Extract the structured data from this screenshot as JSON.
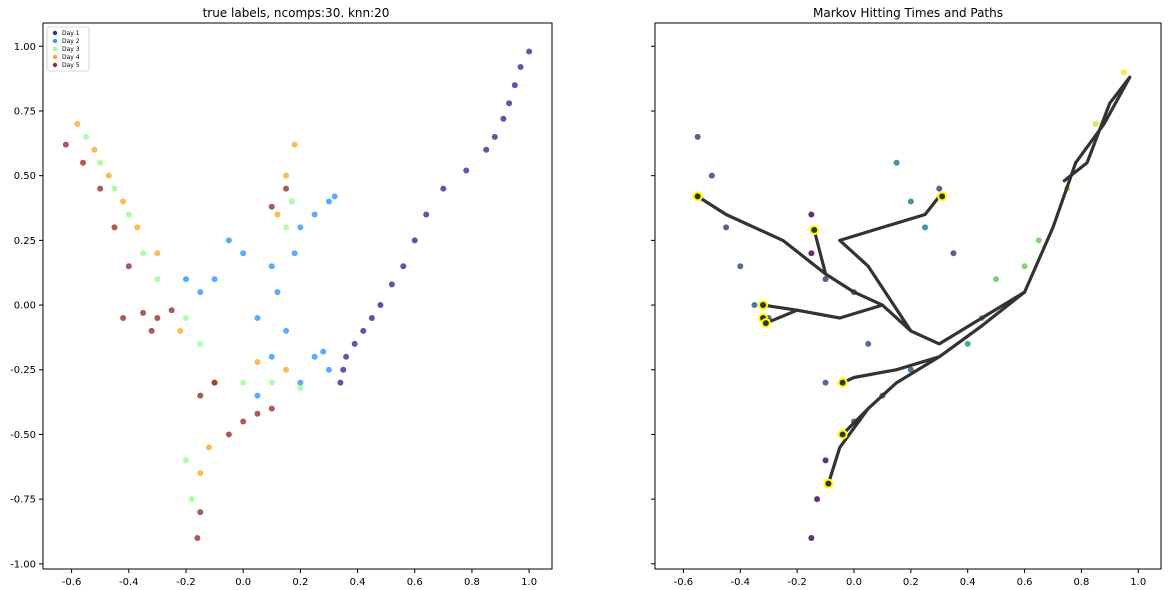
{
  "chart_data": [
    {
      "type": "scatter",
      "title": "true labels, ncomps:30. knn:20",
      "xlabel": "",
      "ylabel": "",
      "xlim": [
        -0.7,
        1.08
      ],
      "ylim": [
        -1.02,
        1.09
      ],
      "xticks": [
        "-0.6",
        "-0.4",
        "-0.2",
        "0.0",
        "0.2",
        "0.4",
        "0.6",
        "0.8",
        "1.0"
      ],
      "yticks": [
        "-1.00",
        "-0.75",
        "-0.50",
        "-0.25",
        "0.00",
        "0.25",
        "0.50",
        "0.75",
        "1.00"
      ],
      "legend": {
        "placement": "top-left"
      },
      "series": [
        {
          "name": "Day 1",
          "color": "#00007f",
          "points": [
            [
              1.0,
              0.98
            ],
            [
              0.97,
              0.92
            ],
            [
              0.95,
              0.85
            ],
            [
              0.93,
              0.78
            ],
            [
              0.91,
              0.72
            ],
            [
              0.88,
              0.65
            ],
            [
              0.85,
              0.6
            ],
            [
              0.78,
              0.52
            ],
            [
              0.7,
              0.45
            ],
            [
              0.64,
              0.35
            ],
            [
              0.6,
              0.25
            ],
            [
              0.56,
              0.15
            ],
            [
              0.52,
              0.08
            ],
            [
              0.48,
              0.0
            ],
            [
              0.45,
              -0.05
            ],
            [
              0.42,
              -0.1
            ],
            [
              0.39,
              -0.15
            ],
            [
              0.36,
              -0.2
            ],
            [
              0.35,
              -0.25
            ],
            [
              0.34,
              -0.3
            ]
          ]
        },
        {
          "name": "Day 2",
          "color": "#0080ff",
          "points": [
            [
              0.3,
              0.4
            ],
            [
              0.25,
              0.35
            ],
            [
              0.2,
              0.3
            ],
            [
              0.18,
              0.2
            ],
            [
              0.1,
              0.15
            ],
            [
              0.0,
              0.2
            ],
            [
              -0.05,
              0.25
            ],
            [
              -0.1,
              0.1
            ],
            [
              -0.15,
              0.05
            ],
            [
              -0.2,
              0.1
            ],
            [
              0.05,
              -0.05
            ],
            [
              0.15,
              -0.1
            ],
            [
              0.25,
              -0.2
            ],
            [
              0.3,
              -0.25
            ],
            [
              0.2,
              -0.3
            ],
            [
              0.1,
              -0.2
            ],
            [
              0.05,
              -0.35
            ],
            [
              0.28,
              -0.18
            ],
            [
              0.32,
              0.42
            ],
            [
              0.12,
              0.05
            ]
          ]
        },
        {
          "name": "Day 3",
          "color": "#7cff79",
          "points": [
            [
              -0.55,
              0.65
            ],
            [
              -0.5,
              0.55
            ],
            [
              -0.45,
              0.45
            ],
            [
              -0.4,
              0.35
            ],
            [
              -0.35,
              0.2
            ],
            [
              -0.3,
              0.1
            ],
            [
              -0.2,
              -0.05
            ],
            [
              -0.15,
              -0.15
            ],
            [
              0.0,
              -0.3
            ],
            [
              0.1,
              -0.3
            ],
            [
              0.2,
              -0.32
            ],
            [
              -0.2,
              -0.6
            ],
            [
              -0.18,
              -0.75
            ],
            [
              0.15,
              0.3
            ],
            [
              0.17,
              0.4
            ]
          ]
        },
        {
          "name": "Day 4",
          "color": "#ff9400",
          "points": [
            [
              -0.58,
              0.7
            ],
            [
              -0.52,
              0.6
            ],
            [
              -0.47,
              0.5
            ],
            [
              -0.42,
              0.4
            ],
            [
              -0.37,
              0.3
            ],
            [
              -0.3,
              0.2
            ],
            [
              -0.22,
              -0.1
            ],
            [
              -0.1,
              -0.3
            ],
            [
              0.05,
              -0.22
            ],
            [
              0.15,
              -0.25
            ],
            [
              0.18,
              0.62
            ],
            [
              0.15,
              0.5
            ],
            [
              0.12,
              0.35
            ],
            [
              -0.12,
              -0.55
            ],
            [
              -0.15,
              -0.65
            ]
          ]
        },
        {
          "name": "Day 5",
          "color": "#7f0000",
          "points": [
            [
              -0.62,
              0.62
            ],
            [
              -0.56,
              0.55
            ],
            [
              -0.5,
              0.45
            ],
            [
              -0.45,
              0.3
            ],
            [
              -0.4,
              0.15
            ],
            [
              -0.42,
              -0.05
            ],
            [
              -0.35,
              -0.03
            ],
            [
              -0.3,
              -0.05
            ],
            [
              -0.25,
              -0.02
            ],
            [
              -0.32,
              -0.1
            ],
            [
              -0.15,
              -0.35
            ],
            [
              -0.1,
              -0.3
            ],
            [
              0.0,
              -0.45
            ],
            [
              0.05,
              -0.42
            ],
            [
              0.1,
              -0.4
            ],
            [
              -0.05,
              -0.5
            ],
            [
              -0.15,
              -0.8
            ],
            [
              -0.16,
              -0.9
            ],
            [
              0.1,
              0.38
            ],
            [
              0.15,
              0.45
            ]
          ]
        }
      ]
    },
    {
      "type": "scatter",
      "title": "Markov Hitting Times and Paths",
      "xlabel": "",
      "ylabel": "",
      "xlim": [
        -0.7,
        1.08
      ],
      "ylim": [
        -1.02,
        1.09
      ],
      "xticks": [
        "-0.6",
        "-0.4",
        "-0.2",
        "0.0",
        "0.2",
        "0.4",
        "0.6",
        "0.8",
        "1.0"
      ],
      "colormap": [
        "#440154",
        "#3b528b",
        "#21908d",
        "#5dc963",
        "#fde725"
      ],
      "points": [
        {
          "x": -0.55,
          "y": 0.65,
          "c": 0.2
        },
        {
          "x": -0.5,
          "y": 0.5,
          "c": 0.2
        },
        {
          "x": -0.45,
          "y": 0.3,
          "c": 0.2
        },
        {
          "x": -0.4,
          "y": 0.15,
          "c": 0.25
        },
        {
          "x": -0.35,
          "y": 0.0,
          "c": 0.3
        },
        {
          "x": -0.3,
          "y": -0.05,
          "c": 0.3
        },
        {
          "x": -0.15,
          "y": 0.2,
          "c": 0.05
        },
        {
          "x": -0.15,
          "y": 0.35,
          "c": 0.05
        },
        {
          "x": -0.1,
          "y": 0.1,
          "c": 0.2
        },
        {
          "x": 0.0,
          "y": 0.05,
          "c": 0.25
        },
        {
          "x": 0.05,
          "y": -0.15,
          "c": 0.25
        },
        {
          "x": 0.15,
          "y": 0.55,
          "c": 0.45
        },
        {
          "x": 0.2,
          "y": 0.4,
          "c": 0.45
        },
        {
          "x": 0.25,
          "y": 0.3,
          "c": 0.45
        },
        {
          "x": 0.3,
          "y": 0.45,
          "c": 0.2
        },
        {
          "x": 0.35,
          "y": 0.2,
          "c": 0.2
        },
        {
          "x": 0.4,
          "y": -0.15,
          "c": 0.55
        },
        {
          "x": 0.45,
          "y": -0.05,
          "c": 0.6
        },
        {
          "x": 0.5,
          "y": 0.1,
          "c": 0.75
        },
        {
          "x": 0.6,
          "y": 0.15,
          "c": 0.78
        },
        {
          "x": 0.65,
          "y": 0.25,
          "c": 0.78
        },
        {
          "x": 0.75,
          "y": 0.45,
          "c": 0.85
        },
        {
          "x": 0.85,
          "y": 0.7,
          "c": 0.95
        },
        {
          "x": 0.95,
          "y": 0.9,
          "c": 1.0
        },
        {
          "x": -0.1,
          "y": -0.3,
          "c": 0.25
        },
        {
          "x": 0.0,
          "y": -0.45,
          "c": 0.25
        },
        {
          "x": 0.1,
          "y": -0.35,
          "c": 0.25
        },
        {
          "x": 0.2,
          "y": -0.25,
          "c": 0.3
        },
        {
          "x": -0.1,
          "y": -0.6,
          "c": 0.05
        },
        {
          "x": -0.13,
          "y": -0.75,
          "c": 0.05
        },
        {
          "x": -0.15,
          "y": -0.9,
          "c": 0.05
        }
      ],
      "terminal_cells": [
        [
          -0.55,
          0.42
        ],
        [
          -0.14,
          0.29
        ],
        [
          0.31,
          0.42
        ],
        [
          -0.32,
          0.0
        ],
        [
          -0.32,
          -0.05
        ],
        [
          -0.31,
          -0.07
        ],
        [
          -0.04,
          -0.3
        ],
        [
          -0.04,
          -0.5
        ],
        [
          -0.09,
          -0.69
        ]
      ],
      "paths": [
        [
          [
            0.97,
            0.88
          ],
          [
            0.9,
            0.78
          ],
          [
            0.82,
            0.55
          ],
          [
            0.74,
            0.48
          ]
        ],
        [
          [
            0.97,
            0.88
          ],
          [
            0.88,
            0.7
          ],
          [
            0.78,
            0.55
          ],
          [
            0.7,
            0.3
          ],
          [
            0.6,
            0.05
          ],
          [
            0.45,
            -0.08
          ],
          [
            0.3,
            -0.2
          ],
          [
            0.15,
            -0.3
          ],
          [
            0.05,
            -0.4
          ],
          [
            -0.04,
            -0.5
          ]
        ],
        [
          [
            0.6,
            0.05
          ],
          [
            0.45,
            -0.05
          ],
          [
            0.3,
            -0.15
          ],
          [
            0.2,
            -0.1
          ],
          [
            0.1,
            0.0
          ],
          [
            0.0,
            0.05
          ],
          [
            -0.1,
            0.12
          ],
          [
            -0.25,
            0.25
          ],
          [
            -0.45,
            0.35
          ],
          [
            -0.55,
            0.42
          ]
        ],
        [
          [
            0.2,
            -0.1
          ],
          [
            0.05,
            0.15
          ],
          [
            -0.05,
            0.25
          ],
          [
            0.1,
            0.3
          ],
          [
            0.25,
            0.35
          ],
          [
            0.3,
            0.42
          ]
        ],
        [
          [
            -0.1,
            0.12
          ],
          [
            -0.14,
            0.29
          ]
        ],
        [
          [
            0.1,
            0.0
          ],
          [
            -0.05,
            -0.05
          ],
          [
            -0.2,
            -0.02
          ],
          [
            -0.32,
            0.0
          ]
        ],
        [
          [
            -0.2,
            -0.02
          ],
          [
            -0.31,
            -0.07
          ]
        ],
        [
          [
            0.3,
            -0.2
          ],
          [
            0.15,
            -0.25
          ],
          [
            0.0,
            -0.28
          ],
          [
            -0.04,
            -0.3
          ]
        ],
        [
          [
            0.05,
            -0.4
          ],
          [
            -0.05,
            -0.55
          ],
          [
            -0.09,
            -0.69
          ]
        ]
      ]
    }
  ]
}
